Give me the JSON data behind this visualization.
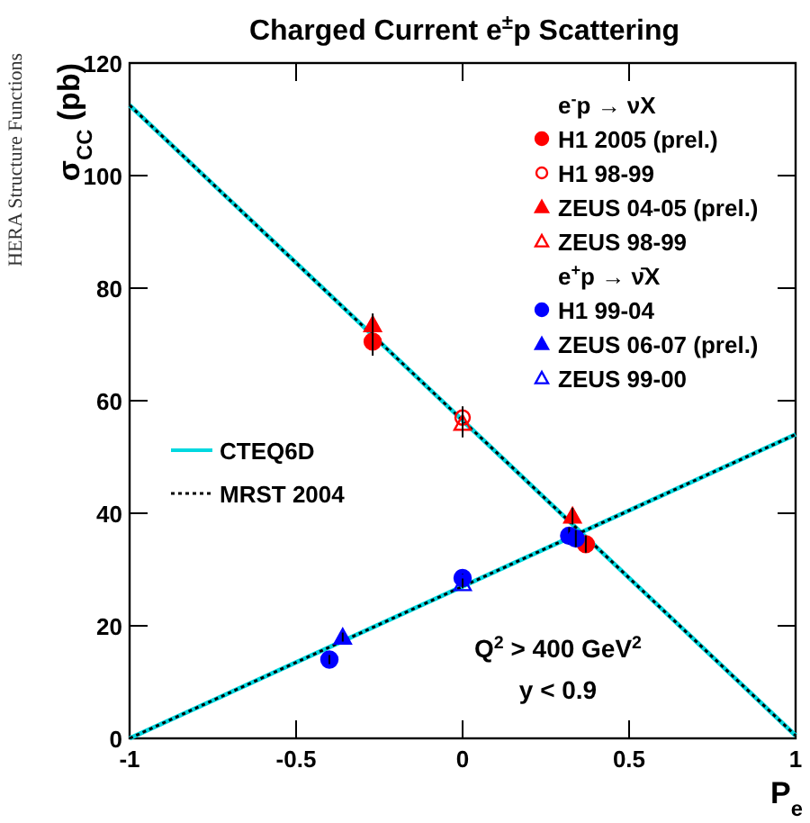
{
  "chart_data": {
    "type": "scatter",
    "title": "Charged Current e$^{±}$p Scattering",
    "xlabel": "P$_{e}$",
    "ylabel": "σ$_{CC}$ (pb)",
    "xlim": [
      -1,
      1
    ],
    "ylim": [
      0,
      120
    ],
    "xticks": [
      -1,
      -0.5,
      0,
      0.5,
      1
    ],
    "yticks": [
      0,
      20,
      40,
      60,
      80,
      100,
      120
    ],
    "grid": false,
    "legend": "right",
    "annotations": [
      "Q$^{2}$ > 400 GeV$^{2}$",
      "y < 0.9",
      "e$^{-}$p → νX",
      "e$^{+}$p → ν̄X",
      "HERA Structure Functions"
    ],
    "series": [
      {
        "name": "H1 2005 (prel.)",
        "color": "#ff0000",
        "marker": "circle",
        "x": [
          -0.27,
          0.37
        ],
        "values": [
          70.5,
          34.5
        ],
        "errors": [
          2.5,
          1.5
        ]
      },
      {
        "name": "H1 98-99",
        "color": "#ff0000",
        "marker": "circle-open",
        "x": [
          0
        ],
        "values": [
          57
        ],
        "errors": [
          2
        ]
      },
      {
        "name": "ZEUS 04-05 (prel.)",
        "color": "#ff0000",
        "marker": "triangle",
        "x": [
          -0.27,
          0.33
        ],
        "values": [
          73.5,
          39.5
        ],
        "errors": [
          2,
          1.5
        ]
      },
      {
        "name": "ZEUS 98-99",
        "color": "#ff0000",
        "marker": "triangle-open",
        "x": [
          0
        ],
        "values": [
          56
        ],
        "errors": [
          2.5
        ]
      },
      {
        "name": "H1 99-04",
        "color": "#0000ff",
        "marker": "circle",
        "x": [
          -0.4,
          0,
          0.32,
          0.34
        ],
        "values": [
          14,
          28.5,
          36,
          35.5
        ],
        "errors": [
          0.8,
          0.8,
          1.5,
          1.5
        ]
      },
      {
        "name": "ZEUS 06-07 (prel.)",
        "color": "#0000ff",
        "marker": "triangle",
        "x": [
          -0.36
        ],
        "values": [
          18
        ],
        "errors": [
          0.8
        ]
      },
      {
        "name": "ZEUS 99-00",
        "color": "#0000ff",
        "marker": "triangle-open",
        "x": [
          0
        ],
        "values": [
          27.5
        ],
        "errors": [
          0.8
        ]
      },
      {
        "name": "CTEQ6D",
        "type": "line",
        "color": "#00d8e0",
        "marker": "none",
        "line_style": "solid",
        "x": [
          -1,
          1
        ],
        "values": [
          112.5,
          0.5
        ]
      },
      {
        "type": "line",
        "color": "#00d8e0",
        "marker": "none",
        "line_style": "solid",
        "x": [
          -1,
          1
        ],
        "values": [
          0,
          54
        ]
      },
      {
        "name": "MRST 2004",
        "type": "line",
        "color": "#000000",
        "marker": "none",
        "line_style": "dotted",
        "x": [
          -1,
          1
        ],
        "values": [
          112.5,
          0.5
        ]
      },
      {
        "type": "line",
        "color": "#000000",
        "marker": "none",
        "line_style": "dotted",
        "x": [
          -1,
          1
        ],
        "values": [
          0,
          54
        ]
      }
    ]
  }
}
